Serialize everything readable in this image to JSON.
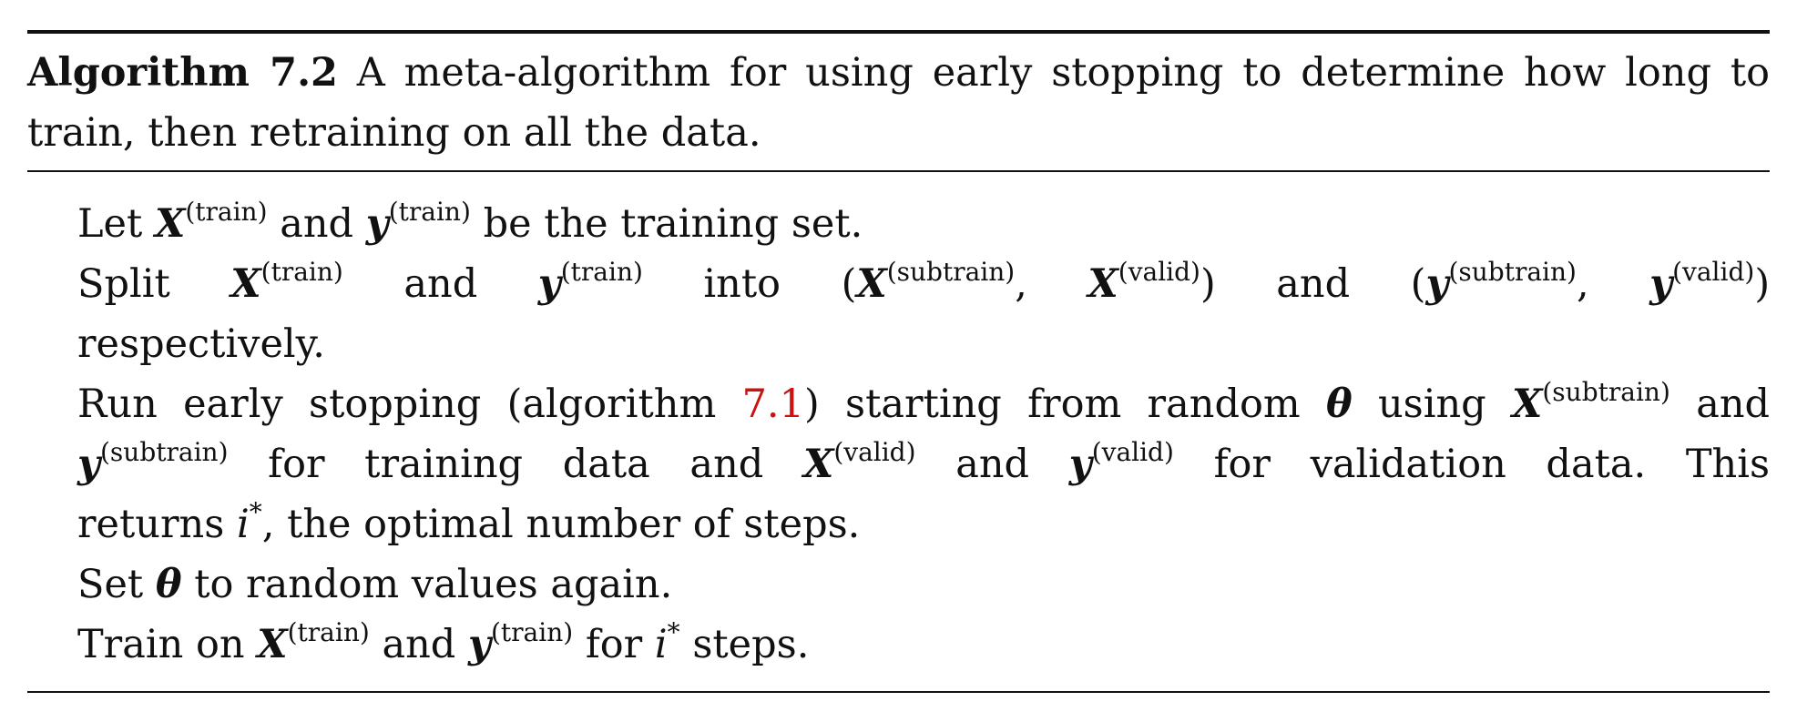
{
  "algorithm": {
    "label": "Algorithm 7.2",
    "caption": "A meta-algorithm for using early stopping to determine how long to train, then retraining on all the data."
  },
  "symbols": {
    "X": "X",
    "y": "y",
    "theta": "θ",
    "i": "i",
    "star": "*",
    "lparen": "(",
    "rparen": ")",
    "sup_train": "(train)",
    "sup_subtrain": "(subtrain)",
    "sup_valid": "(valid)"
  },
  "steps": {
    "s1": {
      "a": "Let",
      "b": "and",
      "c": "be the training set."
    },
    "s2": {
      "a": "Split",
      "b": "and",
      "c": "into",
      "comma": ",",
      "d": "and",
      "e": "respectively."
    },
    "s3": {
      "a": "Run early stopping (algorithm",
      "ref": "7.1",
      "b": ") starting from random",
      "c": "using",
      "d": "and",
      "e": "for training data and",
      "f": "and",
      "g": "for validation data. This",
      "h": "returns",
      "i_tail": ", the optimal number of steps."
    },
    "s4": {
      "a": "Set",
      "b": "to random values again."
    },
    "s5": {
      "a": "Train on",
      "b": "and",
      "c": "for",
      "d": "steps."
    }
  }
}
